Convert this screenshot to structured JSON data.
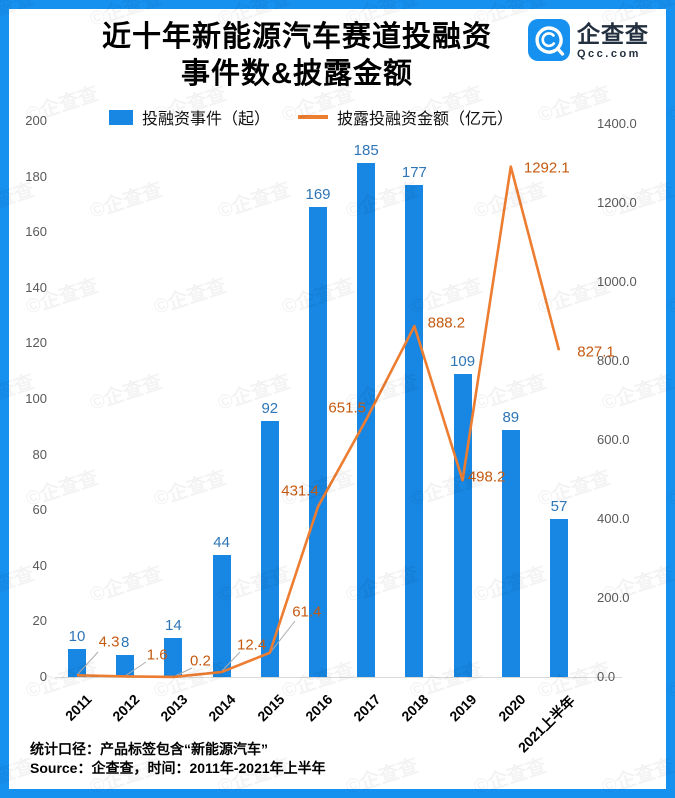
{
  "header": {
    "title_line1": "近十年新能源汽车赛道投融资",
    "title_line2": "事件数&披露金额",
    "brand": {
      "name": "企查查",
      "domain": "Qcc.com"
    }
  },
  "legend": {
    "bar_label": "投融资事件（起）",
    "line_label": "披露投融资金额（亿元）"
  },
  "footer": {
    "line1": "统计口径：产品标签包含“新能源汽车”",
    "line2": "Source：企查查，时间：2011年-2021年上半年"
  },
  "watermark": "©企查查",
  "colors": {
    "frame_blue": "#1791F0",
    "bar_blue": "#1787E3",
    "line_orange": "#ED7D31",
    "bar_label_blue": "#2E75B6",
    "line_label_orange": "#C55A11",
    "axis_text_gray": "#595959",
    "axis_line_gray": "#D9D9D9",
    "leader_gray": "#ADADAD",
    "brand_text": "#222F3E"
  },
  "chart_data": {
    "type": "combo-bar-line",
    "title": "近十年新能源汽车赛道投融资事件数&披露金额",
    "categories": [
      "2011",
      "2012",
      "2013",
      "2014",
      "2015",
      "2016",
      "2017",
      "2018",
      "2019",
      "2020",
      "2021上半年"
    ],
    "series": [
      {
        "name": "投融资事件（起）",
        "type": "bar",
        "axis": "left",
        "values": [
          10,
          8,
          14,
          44,
          92,
          169,
          185,
          177,
          109,
          89,
          57
        ]
      },
      {
        "name": "披露投融资金额（亿元）",
        "type": "line",
        "axis": "right",
        "values": [
          4.3,
          1.6,
          0.2,
          12.4,
          61.4,
          431.4,
          651.5,
          888.2,
          498.2,
          1292.1,
          827.1
        ]
      }
    ],
    "left_axis": {
      "min": 0,
      "max": 200,
      "step": 20,
      "ticks": [
        "0",
        "20",
        "40",
        "60",
        "80",
        "100",
        "120",
        "140",
        "160",
        "180",
        "200"
      ]
    },
    "right_axis": {
      "min": 0,
      "max": 1400,
      "step": 200,
      "ticks": [
        "0.0",
        "200.0",
        "400.0",
        "600.0",
        "800.0",
        "1000.0",
        "1200.0",
        "1400.0"
      ]
    },
    "grid": false,
    "legend_position": "top"
  }
}
